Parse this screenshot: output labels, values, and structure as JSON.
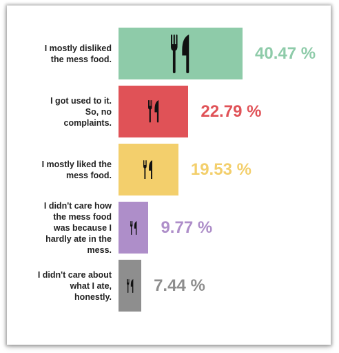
{
  "chart_data": {
    "type": "bar",
    "orientation": "horizontal",
    "categories": [
      "I mostly disliked the mess food.",
      "I got used to it. So, no complaints.",
      "I mostly liked the mess food.",
      "I didn't care how the mess food was because I hardly ate in the mess.",
      "I didn't care about what I ate, honestly."
    ],
    "label_lines": [
      [
        "I mostly disliked",
        "the mess food."
      ],
      [
        "I got used to it.",
        "So, no",
        "complaints."
      ],
      [
        "I mostly liked the",
        "mess food."
      ],
      [
        "I didn't care how",
        "the mess food",
        "was because I",
        "hardly ate in the",
        "mess."
      ],
      [
        "I didn't care about",
        "what I ate,",
        "honestly."
      ]
    ],
    "values": [
      40.47,
      22.79,
      19.53,
      9.77,
      7.44
    ],
    "value_labels": [
      "40.47 %",
      "22.79 %",
      "19.53 %",
      "9.77 %",
      "7.44 %"
    ],
    "colors": [
      "#8ecba9",
      "#e05257",
      "#f3cf6c",
      "#ae8ec9",
      "#8e8e8e"
    ],
    "icon": "fork-knife-icon",
    "icon_color": "#111111",
    "xlim": [
      0,
      40.47
    ],
    "title": "",
    "xlabel": "",
    "ylabel": ""
  }
}
